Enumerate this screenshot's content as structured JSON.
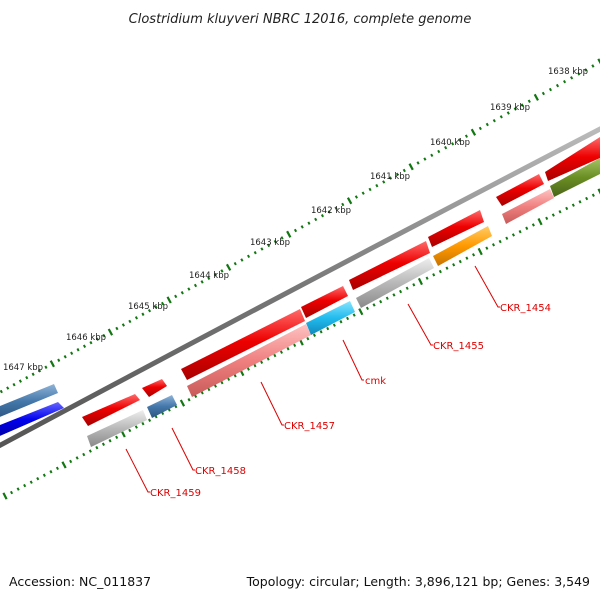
{
  "title": "Clostridium kluyveri NBRC 12016, complete genome",
  "footer": {
    "accession": "Accession: NC_011837",
    "summary": "Topology: circular; Length: 3,896,121 bp; Genes: 3,549"
  },
  "scale": {
    "unit": "kbp",
    "major_ticks": [
      {
        "kbp": 1638,
        "label": "1638 kbp"
      },
      {
        "kbp": 1639,
        "label": "1639 kbp"
      },
      {
        "kbp": 1640,
        "label": "1640 kbp"
      },
      {
        "kbp": 1641,
        "label": "1641 kbp"
      },
      {
        "kbp": 1642,
        "label": "1642 kbp"
      },
      {
        "kbp": 1643,
        "label": "1643 kbp"
      },
      {
        "kbp": 1644,
        "label": "1644 kbp"
      },
      {
        "kbp": 1645,
        "label": "1645 kbp"
      },
      {
        "kbp": 1646,
        "label": "1646 kbp"
      },
      {
        "kbp": 1647,
        "label": "1647 kbp"
      }
    ]
  },
  "gene_labels": [
    "CKR_1454",
    "CKR_1455",
    "cmk",
    "CKR_1457",
    "CKR_1458",
    "CKR_1459"
  ],
  "colors": {
    "cds": "#ee0000",
    "cds_light": "#f08080",
    "gene_gray": "#b4b4b4",
    "gene_orange": "#ff9900",
    "gene_cyan": "#22bbee",
    "gene_steelblue": "#4477aa",
    "gene_blue": "#0000ee",
    "gene_olive": "#6b8e23",
    "backbone": "#777777",
    "ticks": "#117711",
    "label": "#dd0000"
  }
}
